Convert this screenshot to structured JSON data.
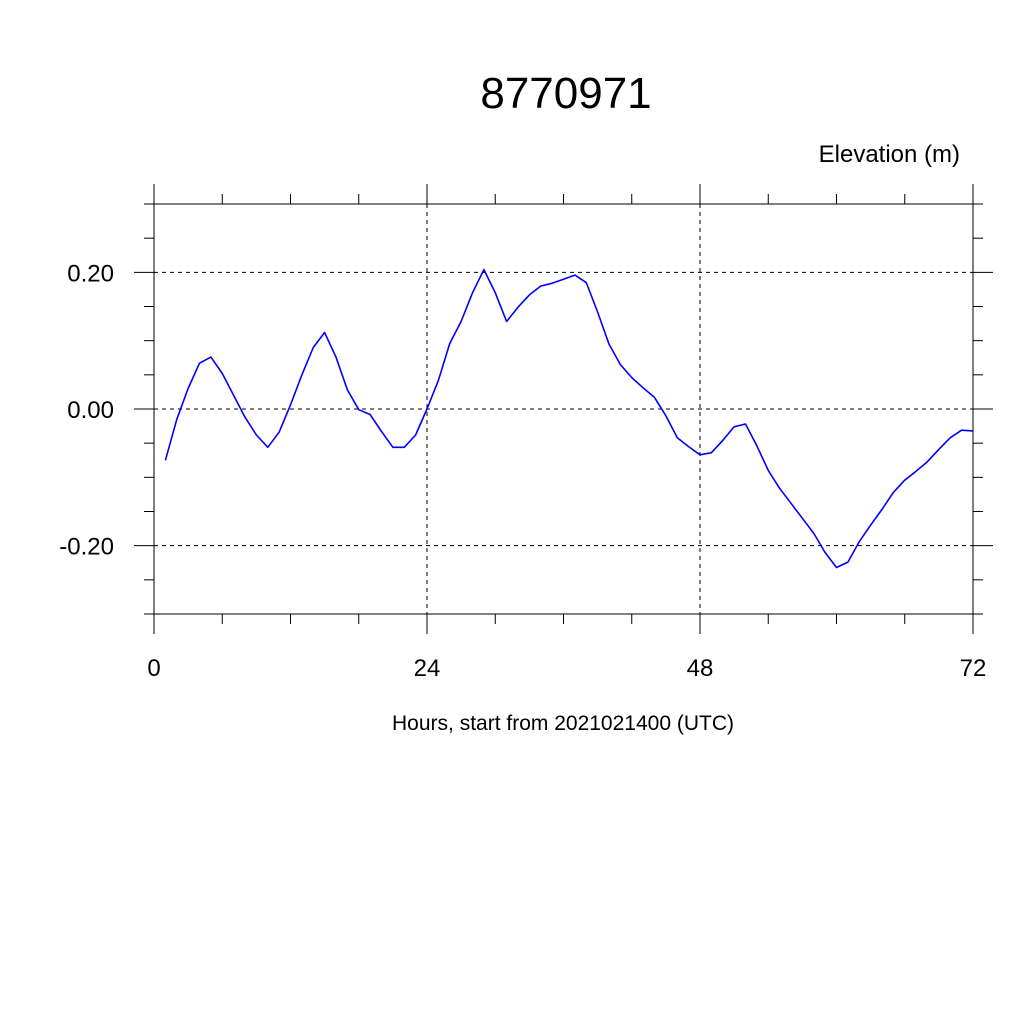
{
  "chart_data": {
    "type": "line",
    "title": "8770971",
    "ylabel": "Elevation (m)",
    "xlabel": "Hours, start from 2021021400 (UTC)",
    "xlim": [
      0,
      72
    ],
    "ylim": [
      -0.3,
      0.3
    ],
    "x_ticks": [
      0,
      24,
      48,
      72
    ],
    "x_tick_labels": [
      "0",
      "24",
      "48",
      "72"
    ],
    "y_ticks": [
      -0.2,
      0.0,
      0.2
    ],
    "y_tick_labels": [
      "-0.20",
      "0.00",
      "0.20"
    ],
    "grid": true,
    "series": [
      {
        "color": "#0000ff",
        "x": [
          1,
          2,
          3,
          4,
          5,
          6,
          7,
          8,
          9,
          10,
          11,
          12,
          13,
          14,
          15,
          16,
          17,
          18,
          19,
          20,
          21,
          22,
          23,
          24,
          25,
          26,
          27,
          28,
          29,
          30,
          31,
          32,
          33,
          34,
          35,
          36,
          37,
          38,
          39,
          40,
          41,
          42,
          43,
          44,
          45,
          46,
          47,
          48,
          49,
          50,
          51,
          52,
          53,
          54,
          55,
          56,
          57,
          58,
          59,
          60,
          61,
          62,
          63,
          64,
          65,
          66,
          67,
          68,
          69,
          70,
          71,
          72
        ],
        "values": [
          -0.075,
          -0.015,
          0.03,
          0.067,
          0.076,
          0.052,
          0.02,
          -0.012,
          -0.038,
          -0.056,
          -0.034,
          0.006,
          0.05,
          0.09,
          0.112,
          0.076,
          0.028,
          -0.001,
          -0.008,
          -0.033,
          -0.056,
          -0.056,
          -0.038,
          0.0,
          0.042,
          0.096,
          0.128,
          0.17,
          0.204,
          0.17,
          0.128,
          0.149,
          0.167,
          0.18,
          0.184,
          0.19,
          0.196,
          0.185,
          0.142,
          0.095,
          0.065,
          0.046,
          0.031,
          0.017,
          -0.01,
          -0.042,
          -0.055,
          -0.067,
          -0.064,
          -0.046,
          -0.026,
          -0.022,
          -0.054,
          -0.09,
          -0.116,
          -0.138,
          -0.16,
          -0.182,
          -0.21,
          -0.232,
          -0.224,
          -0.194,
          -0.17,
          -0.147,
          -0.122,
          -0.104,
          -0.091,
          -0.077,
          -0.059,
          -0.042,
          -0.031,
          -0.032
        ]
      }
    ]
  }
}
